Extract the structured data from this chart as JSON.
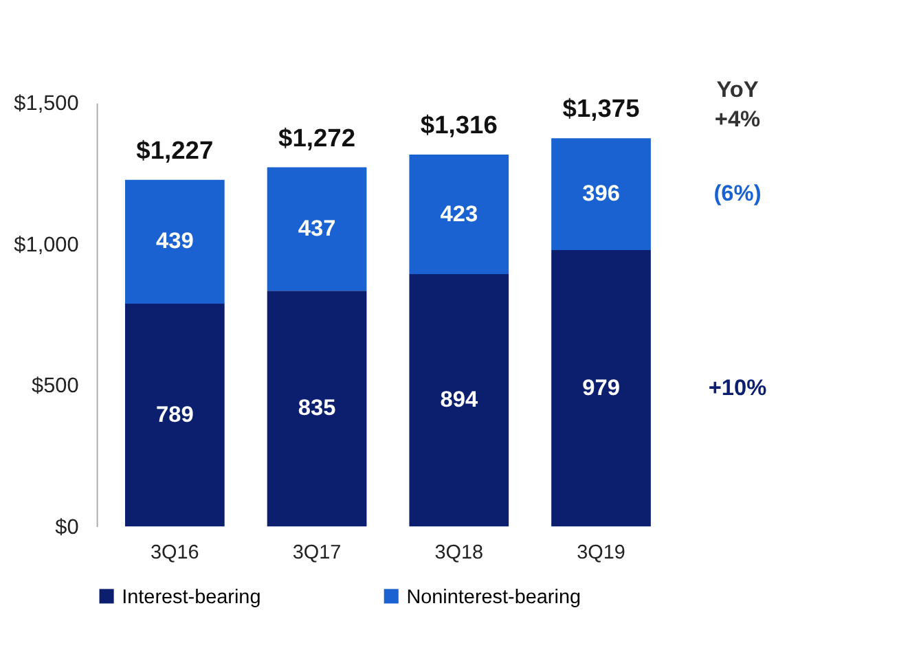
{
  "chart_data": {
    "type": "bar",
    "stacked": true,
    "categories": [
      "3Q16",
      "3Q17",
      "3Q18",
      "3Q19"
    ],
    "series": [
      {
        "name": "Interest-bearing",
        "color": "#0b1f6e",
        "values": [
          789,
          835,
          894,
          979
        ]
      },
      {
        "name": "Noninterest-bearing",
        "color": "#1a62d2",
        "values": [
          439,
          437,
          423,
          396
        ]
      }
    ],
    "totals": [
      "$1,227",
      "$1,272",
      "$1,316",
      "$1,375"
    ],
    "data_labels": true,
    "ylim": [
      0,
      1500
    ],
    "yticks": [
      {
        "value": 0,
        "label": "$0"
      },
      {
        "value": 500,
        "label": "$500"
      },
      {
        "value": 1000,
        "label": "$1,000"
      },
      {
        "value": 1500,
        "label": "$1,500"
      }
    ],
    "grid": false,
    "legend": "bottom",
    "annotations": [
      "YoY",
      "+4%",
      "(6%)",
      "+10%"
    ]
  }
}
